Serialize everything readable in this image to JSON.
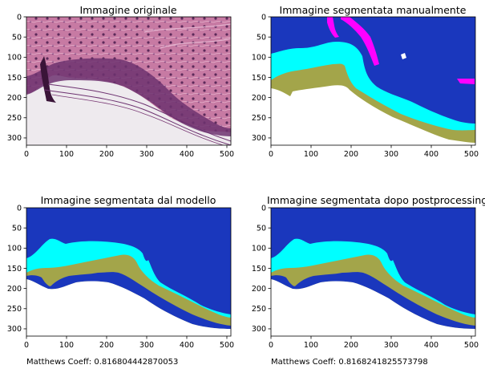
{
  "panels": [
    {
      "title": "Immagine originale"
    },
    {
      "title": "Immagine segmentata manualmente"
    },
    {
      "title": "Immagine segmentata dal modello",
      "caption": "Matthews Coeff: 0.816804442870053"
    },
    {
      "title": "Immagine segmentata dopo postprocessing",
      "caption": "Matthews Coeff: 0.8168241825573798"
    }
  ],
  "axes": {
    "x_ticks": [
      0,
      100,
      200,
      300,
      400,
      500
    ],
    "y_ticks": [
      0,
      50,
      100,
      150,
      200,
      250,
      300
    ],
    "xlim": [
      0,
      510
    ],
    "ylim": [
      0,
      318
    ]
  },
  "colors": {
    "background_class": "#1a37bd",
    "cyan_class": "#00ffff",
    "olive_class": "#a3a54a",
    "magenta_class": "#ff00ff",
    "white": "#ffffff",
    "tissue_pink": "#c77aa3",
    "tissue_dark": "#5c2a5a"
  }
}
